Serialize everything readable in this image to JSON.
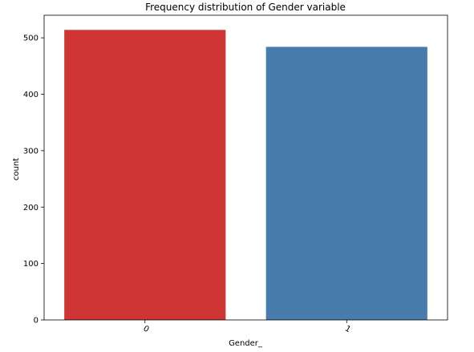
{
  "chart_data": {
    "type": "bar",
    "title": "Frequency distribution of Gender variable",
    "xlabel": "Gender_",
    "ylabel": "count",
    "categories": [
      "0",
      "1"
    ],
    "values": [
      514,
      484
    ],
    "colors": [
      "#d03536",
      "#477cac"
    ],
    "ylim": [
      0,
      540
    ],
    "yticks": [
      0,
      100,
      200,
      300,
      400,
      500
    ],
    "x_tick_rotation_deg": 30,
    "grid": false,
    "legend": "none"
  }
}
